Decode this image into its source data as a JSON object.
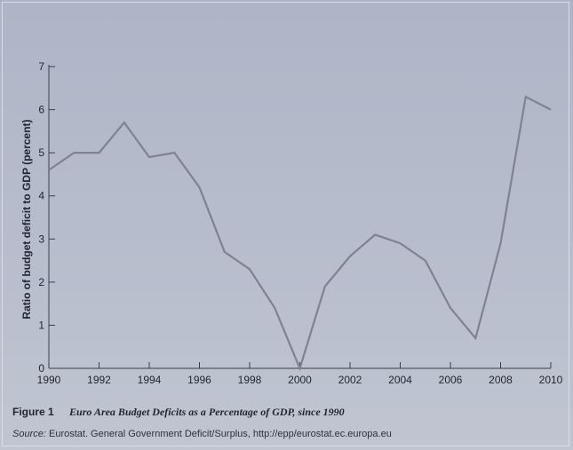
{
  "chart_data": {
    "type": "line",
    "ylabel": "Ratio of budget deficit to GDP (percent)",
    "xlabel": "",
    "xlim": [
      1990,
      2010
    ],
    "ylim": [
      0,
      7
    ],
    "x_ticks": [
      "1990",
      "1992",
      "1994",
      "1996",
      "1998",
      "2000",
      "2002",
      "2004",
      "2006",
      "2008",
      "2010"
    ],
    "y_ticks": [
      "0",
      "1",
      "2",
      "3",
      "4",
      "5",
      "6",
      "7"
    ],
    "grid": false,
    "series": [
      {
        "x": [
          1990,
          1991,
          1992,
          1993,
          1994,
          1995,
          1996,
          1997,
          1998,
          1999,
          2000,
          2001,
          2002,
          2003,
          2004,
          2005,
          2006,
          2007,
          2008,
          2009,
          2010
        ],
        "values": [
          4.6,
          5.0,
          5.0,
          5.7,
          4.9,
          5.0,
          4.2,
          2.7,
          2.3,
          1.4,
          0.0,
          1.9,
          2.6,
          3.1,
          2.9,
          2.5,
          1.4,
          0.7,
          2.9,
          6.3,
          6.0
        ],
        "color": "#7e838f"
      }
    ]
  },
  "caption": {
    "figure_number": "Figure 1",
    "title": "Euro Area Budget Deficits as a Percentage of GDP, since 1990"
  },
  "source": {
    "label": "Source:",
    "text": "Eurostat. General Government Deficit/Surplus, http://epp/eurostat.ec.europa.eu"
  }
}
